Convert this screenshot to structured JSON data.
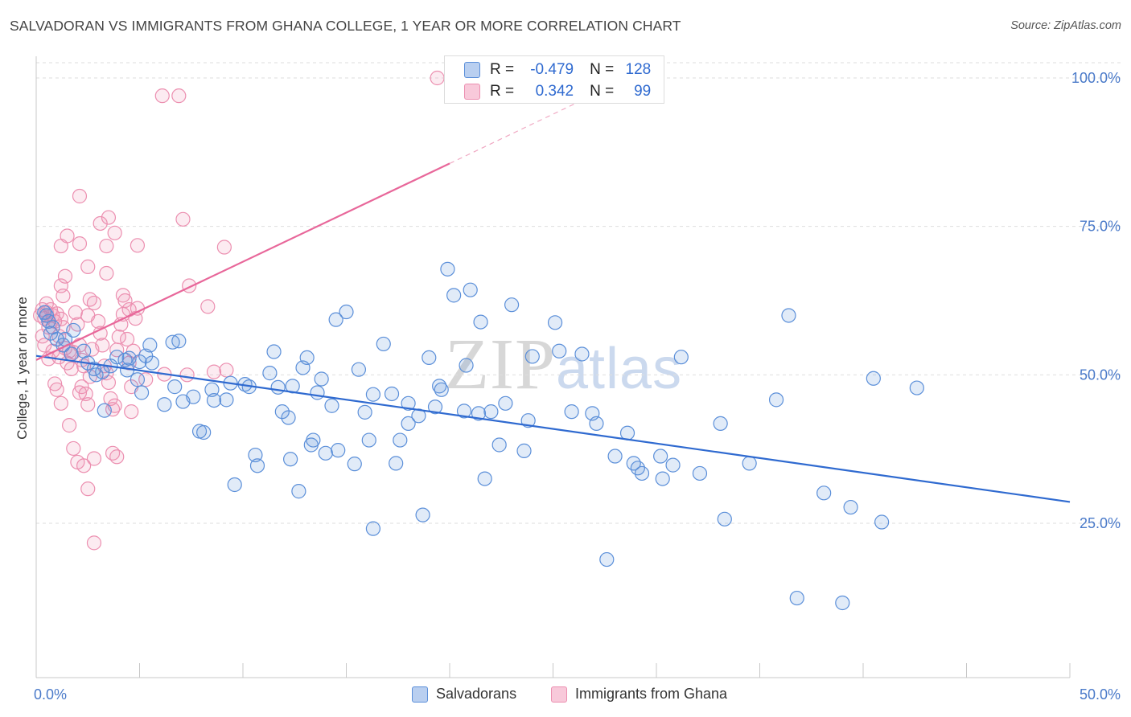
{
  "title": "SALVADORAN VS IMMIGRANTS FROM GHANA COLLEGE, 1 YEAR OR MORE CORRELATION CHART",
  "source": "Source: ZipAtlas.com",
  "watermark": {
    "zip": "ZIP",
    "atlas": "atlas"
  },
  "colors": {
    "blue": "#5b8fd9",
    "blue_line": "#2f6ad0",
    "pink": "#ec8fb0",
    "pink_line": "#e8679a",
    "axis_text": "#4a7ac9"
  },
  "legend_top": {
    "rows": [
      {
        "r_label": "R =",
        "r_value": "-0.479",
        "n_label": "N =",
        "n_value": "128"
      },
      {
        "r_label": "R =",
        "r_value": "0.342",
        "n_label": "N =",
        "n_value": "99"
      }
    ]
  },
  "legend_bottom": {
    "series1": "Salvadorans",
    "series2": "Immigrants from Ghana"
  },
  "chart_data": {
    "type": "scatter",
    "title": "SALVADORAN VS IMMIGRANTS FROM GHANA COLLEGE, 1 YEAR OR MORE CORRELATION CHART",
    "xlabel": "",
    "ylabel": "College, 1 year or more",
    "xlim": [
      0,
      50
    ],
    "ylim": [
      0,
      103
    ],
    "x_tick_labels": [
      "0.0%",
      "50.0%"
    ],
    "y_tick_labels": [
      "25.0%",
      "50.0%",
      "75.0%",
      "100.0%"
    ],
    "y_ticks": [
      25,
      50,
      75,
      100
    ],
    "series": [
      {
        "name": "Salvadorans",
        "color": "#5b8fd9",
        "R": -0.479,
        "N": 128,
        "trend": {
          "x": [
            0,
            50
          ],
          "y": [
            53.2,
            28.6
          ]
        },
        "points": [
          [
            0.5,
            60
          ],
          [
            0.4,
            60.5
          ],
          [
            0.6,
            59
          ],
          [
            0.8,
            58
          ],
          [
            0.7,
            57
          ],
          [
            1,
            56
          ],
          [
            1.4,
            56
          ],
          [
            1.8,
            57.5
          ],
          [
            1.3,
            55
          ],
          [
            1.7,
            53.5
          ],
          [
            2.3,
            54
          ],
          [
            2.5,
            52
          ],
          [
            2.8,
            51
          ],
          [
            3.2,
            50.5
          ],
          [
            3.6,
            51.5
          ],
          [
            3.9,
            53
          ],
          [
            4.3,
            52.5
          ],
          [
            4.4,
            50.8
          ],
          [
            4.5,
            52.8
          ],
          [
            5,
            52.2
          ],
          [
            5.3,
            53.2
          ],
          [
            5.5,
            55
          ],
          [
            5.6,
            52
          ],
          [
            3.3,
            44
          ],
          [
            2.9,
            50
          ],
          [
            4.9,
            49.2
          ],
          [
            5.1,
            47
          ],
          [
            6.2,
            45
          ],
          [
            6.7,
            48
          ],
          [
            7.1,
            45.5
          ],
          [
            6.6,
            55.5
          ],
          [
            6.9,
            55.7
          ],
          [
            7.6,
            46.3
          ],
          [
            7.9,
            40.5
          ],
          [
            8.1,
            40.3
          ],
          [
            8.5,
            47.5
          ],
          [
            8.6,
            45.7
          ],
          [
            9.2,
            45.8
          ],
          [
            9.4,
            48.6
          ],
          [
            10.1,
            48.4
          ],
          [
            9.6,
            31.5
          ],
          [
            10.3,
            48
          ],
          [
            10.6,
            36.5
          ],
          [
            10.7,
            34.7
          ],
          [
            11.3,
            50.3
          ],
          [
            11.5,
            53.9
          ],
          [
            11.7,
            47.9
          ],
          [
            11.9,
            43.8
          ],
          [
            12.2,
            42.8
          ],
          [
            12.3,
            35.8
          ],
          [
            12.4,
            48.1
          ],
          [
            12.7,
            30.4
          ],
          [
            12.9,
            51.2
          ],
          [
            13.1,
            52.9
          ],
          [
            13.3,
            38.2
          ],
          [
            13.4,
            39
          ],
          [
            13.6,
            47
          ],
          [
            13.8,
            49.3
          ],
          [
            14,
            36.8
          ],
          [
            14.3,
            44.8
          ],
          [
            14.5,
            59.3
          ],
          [
            14.6,
            37.3
          ],
          [
            15,
            60.6
          ],
          [
            15.4,
            35
          ],
          [
            15.6,
            50.9
          ],
          [
            15.9,
            43.7
          ],
          [
            16.1,
            39
          ],
          [
            16.3,
            46.7
          ],
          [
            16.8,
            55.2
          ],
          [
            17.2,
            46.8
          ],
          [
            17.4,
            35.1
          ],
          [
            17.6,
            39
          ],
          [
            18,
            45.2
          ],
          [
            18,
            41.8
          ],
          [
            18.5,
            43.1
          ],
          [
            18.7,
            26.4
          ],
          [
            16.3,
            24.1
          ],
          [
            19,
            52.9
          ],
          [
            19.3,
            44.6
          ],
          [
            19.6,
            47.5
          ],
          [
            19.5,
            48.1
          ],
          [
            19.9,
            67.8
          ],
          [
            20.2,
            63.4
          ],
          [
            20.7,
            43.9
          ],
          [
            20.8,
            51.6
          ],
          [
            21,
            64.3
          ],
          [
            21.5,
            58.9
          ],
          [
            21.4,
            43.5
          ],
          [
            21.7,
            32.5
          ],
          [
            22,
            43.8
          ],
          [
            22.4,
            38.2
          ],
          [
            22.7,
            45.2
          ],
          [
            23,
            61.8
          ],
          [
            23.6,
            37.2
          ],
          [
            23.8,
            42.3
          ],
          [
            24,
            53.1
          ],
          [
            25.1,
            58.8
          ],
          [
            25.3,
            54
          ],
          [
            25.9,
            43.8
          ],
          [
            26.4,
            53.5
          ],
          [
            26.9,
            43.5
          ],
          [
            27.1,
            41.8
          ],
          [
            28,
            36.3
          ],
          [
            28.6,
            40.2
          ],
          [
            28.9,
            35.1
          ],
          [
            29.1,
            34.3
          ],
          [
            29.3,
            33.4
          ],
          [
            30.2,
            36.3
          ],
          [
            30.3,
            32.5
          ],
          [
            30.8,
            34.8
          ],
          [
            31.2,
            53
          ],
          [
            32.1,
            33.4
          ],
          [
            33.1,
            41.8
          ],
          [
            33.3,
            25.7
          ],
          [
            34.5,
            35.1
          ],
          [
            35.8,
            45.8
          ],
          [
            36.4,
            60
          ],
          [
            36.8,
            12.4
          ],
          [
            38.1,
            30.1
          ],
          [
            39,
            11.6
          ],
          [
            39.4,
            27.7
          ],
          [
            40.5,
            49.4
          ],
          [
            40.9,
            25.2
          ],
          [
            42.6,
            47.8
          ],
          [
            27.6,
            18.9
          ]
        ]
      },
      {
        "name": "Immigrants from Ghana",
        "color": "#ec8fb0",
        "R": 0.342,
        "N": 99,
        "trend": {
          "x": [
            0,
            20
          ],
          "y": [
            52.5,
            85.6
          ]
        },
        "trend_dashed": {
          "x": [
            20,
            26.5
          ],
          "y": [
            85.6,
            96.4
          ]
        },
        "points": [
          [
            0.2,
            60
          ],
          [
            0.3,
            61
          ],
          [
            0.4,
            59.5
          ],
          [
            0.5,
            60.5
          ],
          [
            0.6,
            59
          ],
          [
            0.7,
            61
          ],
          [
            0.5,
            62
          ],
          [
            0.6,
            58
          ],
          [
            0.8,
            60
          ],
          [
            0.9,
            59
          ],
          [
            1,
            60.3
          ],
          [
            0.3,
            56.5
          ],
          [
            0.4,
            55
          ],
          [
            0.8,
            54
          ],
          [
            0.6,
            52.7
          ],
          [
            1.1,
            56.5
          ],
          [
            1.2,
            59.4
          ],
          [
            1.3,
            58
          ],
          [
            1.1,
            53
          ],
          [
            0.9,
            48.5
          ],
          [
            1,
            47.5
          ],
          [
            1.4,
            54.5
          ],
          [
            1.5,
            52
          ],
          [
            1.6,
            54
          ],
          [
            1.7,
            51
          ],
          [
            1.8,
            53.8
          ],
          [
            1.9,
            60.5
          ],
          [
            2,
            58.5
          ],
          [
            2.1,
            55
          ],
          [
            2.2,
            52.5
          ],
          [
            2.3,
            51.5
          ],
          [
            2.1,
            47
          ],
          [
            2.2,
            48
          ],
          [
            2.4,
            46.8
          ],
          [
            2.5,
            45
          ],
          [
            2.6,
            49.7
          ],
          [
            2.7,
            54.3
          ],
          [
            2.5,
            60
          ],
          [
            2.6,
            62.7
          ],
          [
            2.8,
            62.1
          ],
          [
            3,
            59
          ],
          [
            3.1,
            57
          ],
          [
            3.2,
            55
          ],
          [
            3.3,
            51.5
          ],
          [
            3.4,
            50.3
          ],
          [
            3.5,
            48.7
          ],
          [
            3.6,
            46
          ],
          [
            3.7,
            44.2
          ],
          [
            3.8,
            44.8
          ],
          [
            3.9,
            54.2
          ],
          [
            4,
            56.4
          ],
          [
            4.1,
            58.5
          ],
          [
            4.2,
            60.2
          ],
          [
            4.3,
            62.5
          ],
          [
            4.4,
            56
          ],
          [
            4.5,
            52
          ],
          [
            4.6,
            48
          ],
          [
            4.7,
            54
          ],
          [
            4.8,
            59.5
          ],
          [
            4.9,
            61.2
          ],
          [
            1.2,
            45.2
          ],
          [
            1.6,
            41.5
          ],
          [
            1.8,
            37.6
          ],
          [
            2,
            35.3
          ],
          [
            2.3,
            34.7
          ],
          [
            2.5,
            30.8
          ],
          [
            2.8,
            35.9
          ],
          [
            3.7,
            36.8
          ],
          [
            3.9,
            36.2
          ],
          [
            4.6,
            43.8
          ],
          [
            2.8,
            21.7
          ],
          [
            1.2,
            71.7
          ],
          [
            1.5,
            73.4
          ],
          [
            2.1,
            72.1
          ],
          [
            3.1,
            75.5
          ],
          [
            3.4,
            71.7
          ],
          [
            3.5,
            76.5
          ],
          [
            3.8,
            73.9
          ],
          [
            4.9,
            71.8
          ],
          [
            2.1,
            80.1
          ],
          [
            3.4,
            67.1
          ],
          [
            2.5,
            68.2
          ],
          [
            1.4,
            66.6
          ],
          [
            1.2,
            65
          ],
          [
            1.3,
            63.3
          ],
          [
            4.2,
            63.4
          ],
          [
            4.5,
            61
          ],
          [
            7.4,
            65
          ],
          [
            8.3,
            61.5
          ],
          [
            9.1,
            71.5
          ],
          [
            7.1,
            76.2
          ],
          [
            6.1,
            97
          ],
          [
            6.9,
            97
          ],
          [
            19.4,
            100
          ],
          [
            5.3,
            49.2
          ],
          [
            6.2,
            50.1
          ],
          [
            7.3,
            50
          ],
          [
            8.6,
            50.5
          ],
          [
            9.2,
            50.8
          ]
        ]
      }
    ]
  }
}
